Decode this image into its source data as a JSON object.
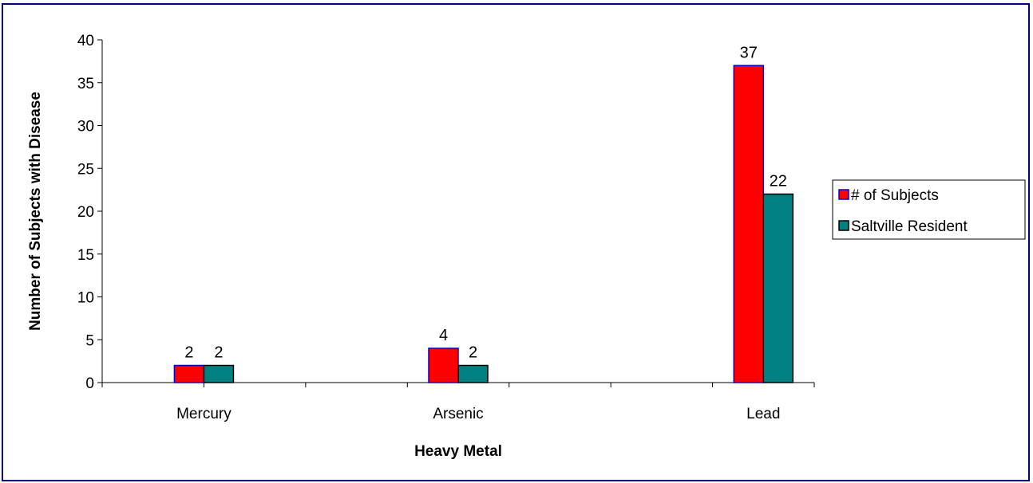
{
  "chart_data": {
    "type": "bar",
    "categories": [
      "Mercury",
      "Arsenic",
      "Lead"
    ],
    "series": [
      {
        "name": "# of Subjects",
        "values": [
          2,
          4,
          37
        ],
        "color": "#ff0000",
        "border": "#0000cc"
      },
      {
        "name": "Saltville Resident",
        "values": [
          2,
          2,
          22
        ],
        "color": "#008080",
        "border": "#000000"
      }
    ],
    "xlabel": "Heavy Metal",
    "ylabel": "Number of Subjects with Disease",
    "ylim": [
      0,
      40
    ],
    "yticks": [
      "0",
      "5",
      "10",
      "15",
      "20",
      "25",
      "30",
      "35",
      "40"
    ],
    "data_labels": true,
    "grid": false,
    "legend_position": "right"
  },
  "colors": {
    "frame_border": "#000080"
  }
}
